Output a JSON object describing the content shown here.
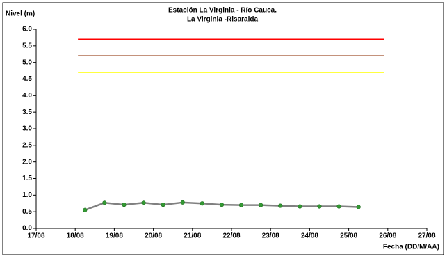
{
  "chart_data": {
    "type": "line",
    "title": "Estación La Virginia  - Río Cauca.",
    "subtitle": "La Virginia -Risaralda",
    "y_label": "Nivel (m)",
    "x_label": "Fecha (DD/M/AA)",
    "xlim": [
      17,
      27
    ],
    "xticks": [
      {
        "value": 17,
        "label": "17/08"
      },
      {
        "value": 18,
        "label": "18/08"
      },
      {
        "value": 19,
        "label": "19/08"
      },
      {
        "value": 20,
        "label": "20/08"
      },
      {
        "value": 21,
        "label": "21/08"
      },
      {
        "value": 22,
        "label": "22/08"
      },
      {
        "value": 23,
        "label": "23/08"
      },
      {
        "value": 24,
        "label": "24/08"
      },
      {
        "value": 25,
        "label": "25/08"
      },
      {
        "value": 26,
        "label": "26/08"
      },
      {
        "value": 27,
        "label": "27/08"
      }
    ],
    "ylim": [
      0,
      6
    ],
    "yticks": [
      {
        "value": 0,
        "label": "0.0"
      },
      {
        "value": 0.5,
        "label": "0.5"
      },
      {
        "value": 1,
        "label": "1.0"
      },
      {
        "value": 1.5,
        "label": "1.5"
      },
      {
        "value": 2,
        "label": "2.0"
      },
      {
        "value": 2.5,
        "label": "2.5"
      },
      {
        "value": 3,
        "label": "3.0"
      },
      {
        "value": 3.5,
        "label": "3.5"
      },
      {
        "value": 4,
        "label": "4.0"
      },
      {
        "value": 4.5,
        "label": "4.5"
      },
      {
        "value": 5,
        "label": "5.0"
      },
      {
        "value": 5.5,
        "label": "5.5"
      },
      {
        "value": 6,
        "label": "6.0"
      }
    ],
    "grid": false,
    "series": [
      {
        "color": "#ff0000",
        "markers": false,
        "x": [
          18.07,
          25.9
        ],
        "values": [
          5.7,
          5.7
        ]
      },
      {
        "color": "#a0522d",
        "markers": false,
        "x": [
          18.07,
          25.9
        ],
        "values": [
          5.2,
          5.2
        ]
      },
      {
        "color": "#ffff00",
        "markers": false,
        "x": [
          18.07,
          25.9
        ],
        "values": [
          4.7,
          4.7
        ]
      },
      {
        "color": "#808080",
        "marker_color": "#339933",
        "markers": true,
        "x": [
          18.25,
          18.75,
          19.25,
          19.75,
          20.25,
          20.75,
          21.25,
          21.75,
          22.25,
          22.75,
          23.25,
          23.75,
          24.25,
          24.75,
          25.25
        ],
        "values": [
          0.55,
          0.77,
          0.71,
          0.77,
          0.71,
          0.78,
          0.75,
          0.71,
          0.7,
          0.7,
          0.68,
          0.66,
          0.66,
          0.66,
          0.64
        ]
      }
    ]
  }
}
